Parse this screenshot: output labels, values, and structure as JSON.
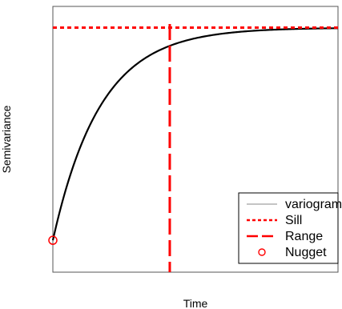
{
  "chart_data": {
    "type": "line",
    "title": "",
    "xlabel": "Time",
    "ylabel": "Semivariance",
    "xlim": [
      0,
      1
    ],
    "ylim": [
      0,
      1
    ],
    "grid": false,
    "axis_ticks": false,
    "legend_position": "bottom-right",
    "series": [
      {
        "name": "variogram",
        "kind": "exponential-curve",
        "nugget": 0.12,
        "sill": 0.92,
        "rate": 18,
        "color": "#000000",
        "legend_color": "#a0a0a0",
        "style": "solid"
      },
      {
        "name": "Sill",
        "kind": "horizontal-line",
        "y": 0.92,
        "color": "#ff0000",
        "style": "dotted"
      },
      {
        "name": "Range",
        "kind": "vertical-line",
        "x": 0.41,
        "color": "#ff0000",
        "style": "dashed"
      },
      {
        "name": "Nugget",
        "kind": "point",
        "x": 0.0,
        "y": 0.12,
        "color": "#ff0000",
        "style": "open-circle"
      }
    ]
  }
}
